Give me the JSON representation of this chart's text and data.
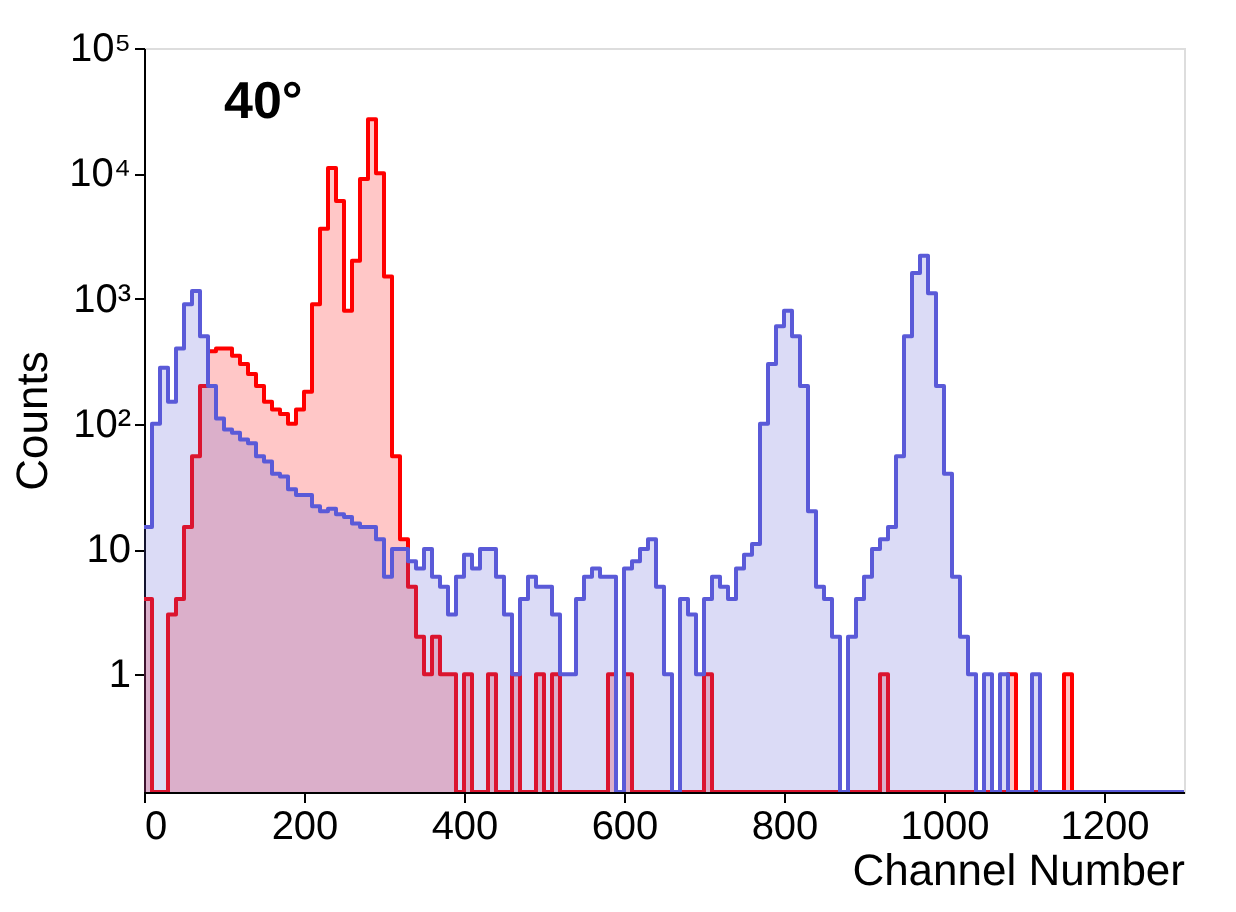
{
  "chart_data": {
    "type": "histogram",
    "xlabel": "Channel Number",
    "ylabel": "Counts",
    "annotations": [
      "40°"
    ],
    "bins": [
      0,
      10,
      20,
      30,
      40,
      50,
      60,
      70,
      80,
      90,
      100,
      110,
      120,
      130,
      140,
      150,
      160,
      170,
      180,
      190,
      200,
      210,
      220,
      230,
      240,
      250,
      260,
      270,
      280,
      290,
      300,
      310,
      320,
      330,
      340,
      350,
      360,
      370,
      380,
      390,
      400,
      410,
      420,
      430,
      440,
      450,
      460,
      470,
      480,
      490,
      500,
      510,
      520,
      530,
      540,
      550,
      560,
      570,
      580,
      590,
      600,
      610,
      620,
      630,
      640,
      650,
      660,
      670,
      680,
      690,
      700,
      710,
      720,
      730,
      740,
      750,
      760,
      770,
      780,
      790,
      800,
      810,
      820,
      830,
      840,
      850,
      860,
      870,
      880,
      890,
      900,
      910,
      920,
      930,
      940,
      950,
      960,
      970,
      980,
      990,
      1000,
      1010,
      1020,
      1030,
      1040,
      1050,
      1060,
      1070,
      1080,
      1090,
      1100,
      1110,
      1120,
      1130,
      1140,
      1150,
      1160,
      1170,
      1180,
      1190,
      1200,
      1210,
      1220,
      1230,
      1240,
      1250,
      1260,
      1270,
      1280,
      1290,
      1300
    ],
    "series": [
      {
        "color": "#ff0000",
        "values": [
          4,
          null,
          null,
          3,
          4,
          15,
          55,
          200,
          380,
          400,
          400,
          350,
          300,
          250,
          200,
          150,
          130,
          120,
          100,
          130,
          180,
          900,
          3600,
          11000,
          6000,
          800,
          2000,
          9000,
          27000,
          10000,
          1500,
          55,
          12,
          5,
          2,
          1,
          2,
          1,
          1,
          null,
          1,
          null,
          null,
          1,
          null,
          null,
          1,
          null,
          null,
          1,
          null,
          1,
          null,
          null,
          null,
          null,
          null,
          null,
          1,
          null,
          1,
          null,
          null,
          null,
          null,
          null,
          null,
          null,
          null,
          null,
          1,
          null,
          null,
          null,
          null,
          null,
          null,
          null,
          null,
          null,
          null,
          null,
          null,
          null,
          null,
          null,
          null,
          null,
          null,
          null,
          null,
          null,
          1,
          null,
          null,
          null,
          null,
          null,
          null,
          null,
          null,
          null,
          null,
          null,
          null,
          null,
          null,
          null,
          1,
          null,
          null,
          null,
          null,
          null,
          null,
          1,
          null,
          null,
          null,
          null,
          null,
          null,
          null,
          null,
          null,
          null,
          null,
          null,
          null,
          null
        ]
      },
      {
        "color": "#5a5ad8",
        "values": [
          15,
          100,
          280,
          150,
          400,
          900,
          1150,
          500,
          200,
          110,
          90,
          85,
          75,
          70,
          55,
          50,
          40,
          38,
          30,
          27,
          27,
          22,
          20,
          21,
          19,
          18,
          16,
          15,
          15,
          12,
          6,
          10,
          10,
          8,
          7,
          10,
          6,
          5,
          3,
          6,
          9,
          7,
          10,
          10,
          6,
          3,
          1,
          4,
          6,
          5,
          5,
          3,
          1,
          1,
          4,
          6,
          7,
          6,
          6,
          null,
          7,
          8,
          10,
          12,
          5,
          1,
          null,
          4,
          3,
          1,
          4,
          6,
          5,
          4,
          7,
          9,
          11,
          100,
          300,
          600,
          800,
          500,
          200,
          20,
          5,
          4,
          2,
          null,
          2,
          4,
          6,
          10,
          12,
          15,
          55,
          500,
          1600,
          2200,
          1100,
          200,
          40,
          6,
          2,
          1,
          null,
          1,
          null,
          1,
          null,
          null,
          null,
          1,
          null,
          null,
          null,
          null,
          null,
          null,
          null,
          null,
          null,
          null,
          null,
          null,
          null,
          null,
          null,
          null,
          null,
          null
        ]
      }
    ],
    "xlim": [
      0,
      1300
    ],
    "xticks": [
      0,
      200,
      400,
      600,
      800,
      1000,
      1200
    ],
    "ylim": [
      0.115,
      100000
    ],
    "log": true,
    "yticks": [
      1,
      10,
      {
        "value": 100,
        "label": "10²"
      },
      {
        "value": 1000,
        "label": "10³"
      },
      {
        "value": 10000,
        "label": "10⁴"
      },
      {
        "value": 100000,
        "label": "10⁵"
      }
    ],
    "grid": false
  }
}
